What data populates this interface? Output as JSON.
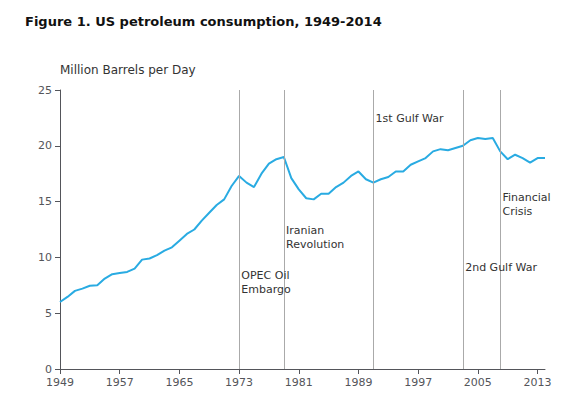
{
  "chart_data": {
    "type": "line",
    "title": "Figure 1. US petroleum consumption, 1949-2014",
    "ylabel": "Million Barrels per Day",
    "color": "#29ABE2",
    "grid": false,
    "xlim": [
      1949,
      2014
    ],
    "xticks": [
      1949,
      1957,
      1965,
      1973,
      1981,
      1989,
      1997,
      2005,
      2013
    ],
    "ylim": [
      0,
      25
    ],
    "yticks": [
      0,
      5,
      10,
      15,
      20,
      25
    ],
    "vlines": [
      1973,
      1979,
      1991,
      2003,
      2008
    ],
    "annotations": [
      {
        "text": "OPEC Oil\nEmbargo",
        "x": 1973.3,
        "y": 6.5
      },
      {
        "text": "Iranian\nRevolution",
        "x": 1979.3,
        "y": 10.5
      },
      {
        "text": "1st Gulf War",
        "x": 1991.3,
        "y": 21.8
      },
      {
        "text": "2nd Gulf War",
        "x": 2003.3,
        "y": 8.5
      },
      {
        "text": "Financial\nCrisis",
        "x": 2008.3,
        "y": 13.5
      }
    ],
    "x": [
      1949,
      1950,
      1951,
      1952,
      1953,
      1954,
      1955,
      1956,
      1957,
      1958,
      1959,
      1960,
      1961,
      1962,
      1963,
      1964,
      1965,
      1966,
      1967,
      1968,
      1969,
      1970,
      1971,
      1972,
      1973,
      1974,
      1975,
      1976,
      1977,
      1978,
      1979,
      1980,
      1981,
      1982,
      1983,
      1984,
      1985,
      1986,
      1987,
      1988,
      1989,
      1990,
      1991,
      1992,
      1993,
      1994,
      1995,
      1996,
      1997,
      1998,
      1999,
      2000,
      2001,
      2002,
      2003,
      2004,
      2005,
      2006,
      2007,
      2008,
      2009,
      2010,
      2011,
      2012,
      2013,
      2014
    ],
    "values": [
      6.0,
      6.46,
      7.0,
      7.2,
      7.46,
      7.5,
      8.1,
      8.5,
      8.6,
      8.7,
      9.0,
      9.8,
      9.9,
      10.2,
      10.6,
      10.9,
      11.5,
      12.1,
      12.5,
      13.3,
      14.0,
      14.7,
      15.2,
      16.4,
      17.3,
      16.7,
      16.3,
      17.5,
      18.4,
      18.8,
      19.0,
      17.1,
      16.1,
      15.3,
      15.2,
      15.7,
      15.7,
      16.3,
      16.7,
      17.3,
      17.7,
      17.0,
      16.7,
      17.0,
      17.2,
      17.7,
      17.7,
      18.3,
      18.6,
      18.9,
      19.5,
      19.7,
      19.6,
      19.8,
      20.0,
      20.5,
      20.7,
      20.6,
      20.7,
      19.5,
      18.8,
      19.2,
      18.9,
      18.5,
      18.9,
      18.9
    ]
  }
}
